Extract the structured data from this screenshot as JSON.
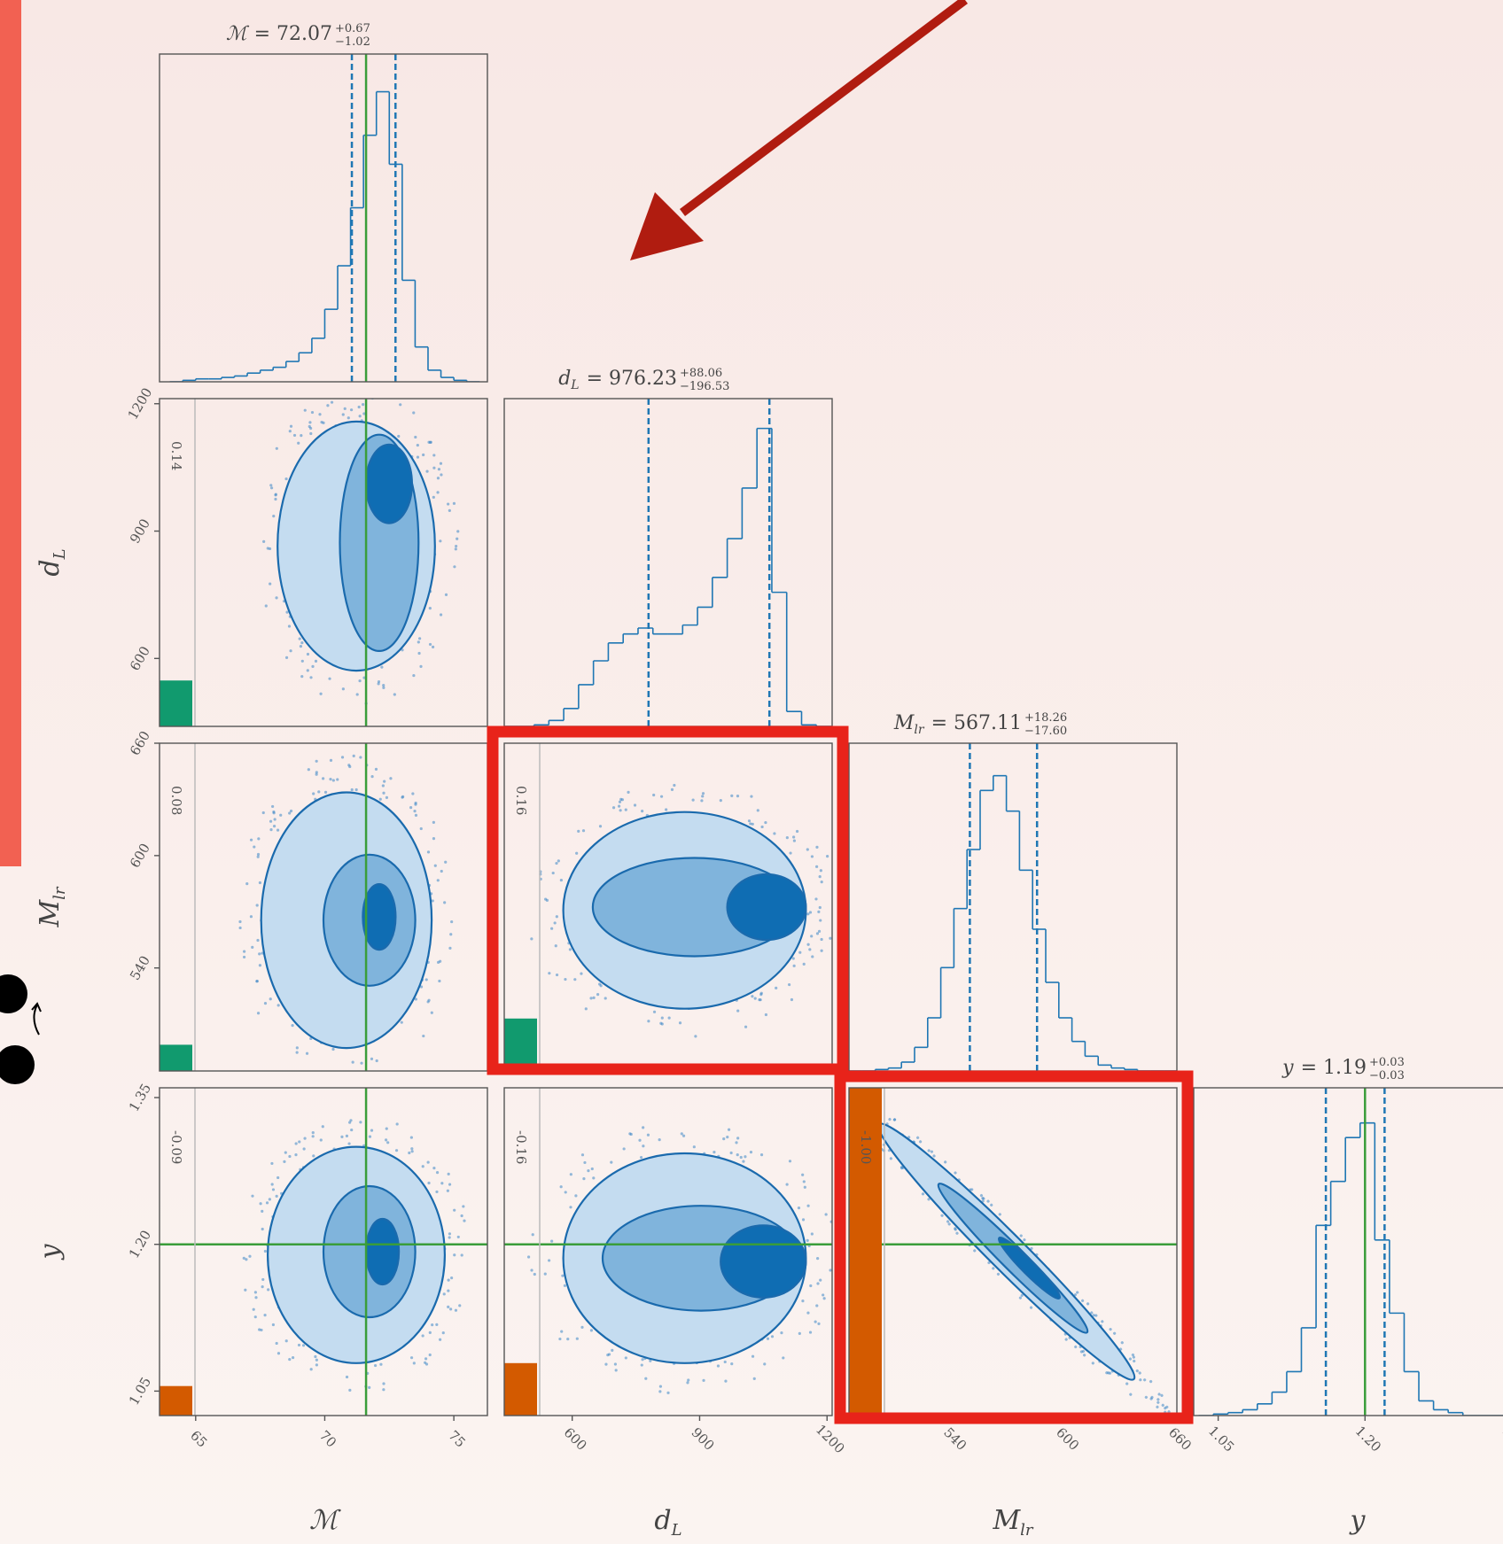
{
  "chart_data": {
    "type": "corner",
    "params": [
      {
        "symbol": "ℳ",
        "title": "= 72.07",
        "upper": "+0.67",
        "lower": "−1.02",
        "lim": [
          63.6,
          76.3
        ],
        "ticks": [
          65,
          70,
          75
        ],
        "truth": 71.6,
        "quantiles": [
          71.05,
          72.74
        ],
        "bins": [
          64,
          64.5,
          65,
          65.5,
          66,
          66.5,
          67,
          67.5,
          68,
          68.5,
          69,
          69.5,
          70,
          70.5,
          71,
          71.5,
          72,
          72.5,
          73,
          73.5,
          74,
          74.5,
          75,
          75.5,
          76
        ],
        "counts": [
          0,
          0.005,
          0.01,
          0.01,
          0.015,
          0.02,
          0.03,
          0.04,
          0.05,
          0.07,
          0.1,
          0.15,
          0.25,
          0.4,
          0.6,
          0.85,
          1.0,
          0.75,
          0.35,
          0.12,
          0.04,
          0.015,
          0.005,
          0
        ],
        "hist_ylim": [
          0,
          1.13
        ]
      },
      {
        "symbol": "d",
        "symbol_sub": "L",
        "title": "= 976.23",
        "upper": "+88.06",
        "lower": "−196.53",
        "lim": [
          440,
          1212
        ],
        "ticks": [
          600,
          900,
          1200
        ],
        "quantiles": [
          779.7,
          1064.29
        ],
        "bins": [
          440,
          475,
          510,
          545,
          580,
          615,
          650,
          685,
          720,
          755,
          790,
          825,
          860,
          895,
          930,
          965,
          1000,
          1035,
          1070,
          1105,
          1140,
          1175,
          1210
        ],
        "counts": [
          0,
          0,
          0.005,
          0.02,
          0.06,
          0.14,
          0.22,
          0.28,
          0.31,
          0.33,
          0.31,
          0.31,
          0.34,
          0.4,
          0.5,
          0.63,
          0.8,
          1.0,
          0.45,
          0.05,
          0.005,
          0
        ],
        "hist_ylim": [
          0,
          1.1
        ]
      },
      {
        "symbol": "M",
        "symbol_sub": "lr",
        "title": "= 567.11",
        "upper": "+18.26",
        "lower": "−17.60",
        "lim": [
          485,
          660
        ],
        "ticks": [
          540,
          600,
          660
        ],
        "quantiles": [
          549.51,
          585.37
        ],
        "bins": [
          485,
          492,
          499,
          506,
          513,
          520,
          527,
          534,
          541,
          548,
          555,
          562,
          569,
          576,
          583,
          590,
          597,
          604,
          611,
          618,
          625,
          632,
          639,
          646,
          653,
          660
        ],
        "counts": [
          0,
          0,
          0.005,
          0.01,
          0.03,
          0.08,
          0.18,
          0.35,
          0.55,
          0.75,
          0.95,
          1.0,
          0.88,
          0.68,
          0.48,
          0.3,
          0.18,
          0.1,
          0.05,
          0.02,
          0.01,
          0.005,
          0,
          0,
          0
        ],
        "hist_ylim": [
          0,
          1.11
        ]
      },
      {
        "symbol": "y",
        "title": "= 1.19",
        "upper": "+0.03",
        "lower": "−0.03",
        "lim": [
          1.025,
          1.36
        ],
        "ticks": [
          {
            "value": 1.05,
            "label": "1.05"
          },
          {
            "value": 1.2,
            "label": "1.20"
          },
          {
            "value": 1.35,
            "label": "1.35"
          }
        ],
        "truth": 1.2,
        "quantiles": [
          1.16,
          1.22
        ],
        "bins": [
          1.03,
          1.045,
          1.06,
          1.075,
          1.09,
          1.105,
          1.12,
          1.135,
          1.15,
          1.165,
          1.18,
          1.195,
          1.21,
          1.225,
          1.24,
          1.255,
          1.27,
          1.285,
          1.3,
          1.315,
          1.33,
          1.345,
          1.36
        ],
        "counts": [
          0,
          0.005,
          0.01,
          0.02,
          0.04,
          0.08,
          0.15,
          0.3,
          0.65,
          0.8,
          0.95,
          1.0,
          0.6,
          0.35,
          0.15,
          0.05,
          0.02,
          0.01,
          0,
          0,
          0,
          0
        ],
        "hist_ylim": [
          0,
          1.12
        ]
      }
    ],
    "correlations": [
      [
        0.14
      ],
      [
        0.08,
        0.16
      ],
      [
        -0.09,
        -0.16,
        {
          "value": -1,
          "label": "-1.00"
        }
      ]
    ],
    "hist_color": "#1f77b4",
    "truth_color": "#3a9d3a",
    "contour_colors": [
      "#c4dcf0",
      "#80b4dc",
      "#0f6db3"
    ],
    "pos_color": "#119a6e",
    "neg_color": "#d35a00"
  }
}
